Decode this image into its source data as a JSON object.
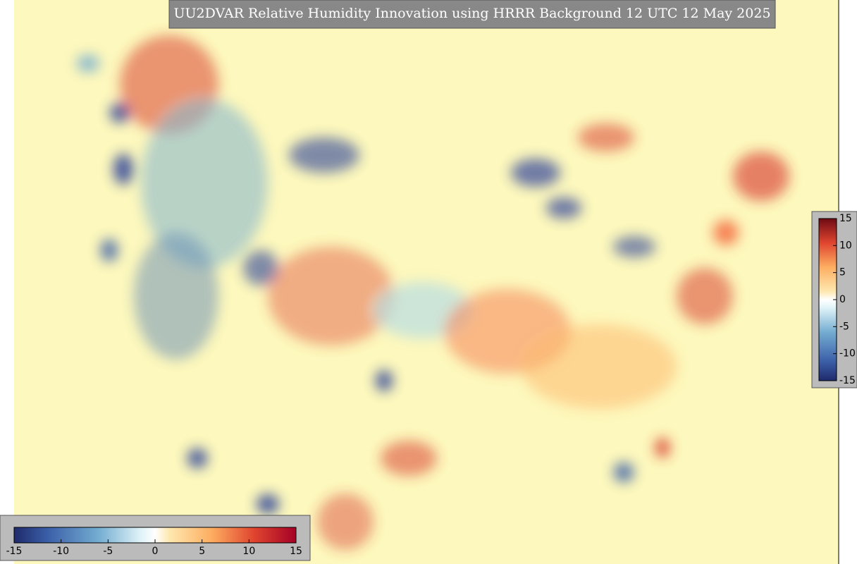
{
  "title": "UU2DVAR Relative Humidity Innovation using HRRR Background 12 UTC 12 May 2025",
  "colorbars": [
    {
      "orientation": "vertical",
      "lim": [
        -15,
        15
      ],
      "ticks": [
        15,
        10,
        5,
        0,
        -5,
        -10,
        -15
      ]
    },
    {
      "orientation": "horizontal",
      "lim": [
        -15,
        15
      ],
      "ticks": [
        -15,
        -10,
        -5,
        0,
        5,
        10,
        15
      ]
    }
  ]
}
